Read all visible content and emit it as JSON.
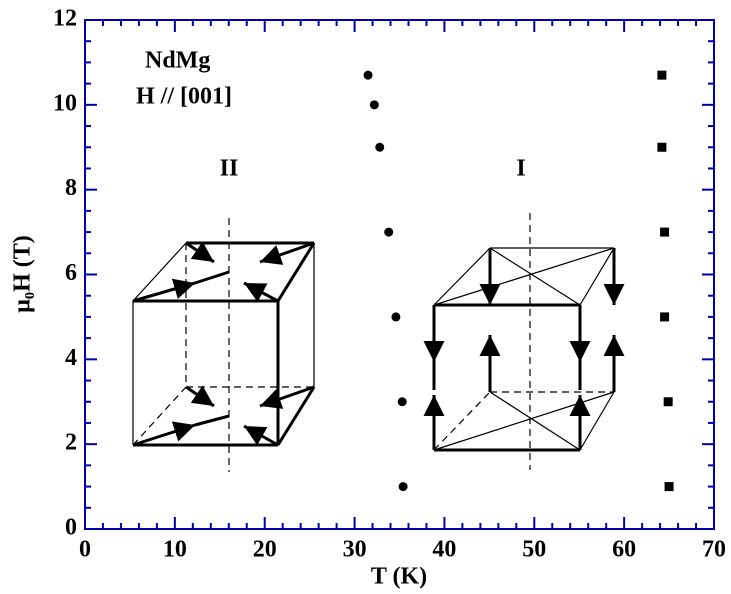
{
  "chart_data": {
    "type": "scatter",
    "x_label": "T (K)",
    "y_label": "μ₀H (T)",
    "annotations": [
      "NdMg",
      "H // [001]",
      "II",
      "I"
    ],
    "series": [
      {
        "marker": "circle",
        "color": "#000000",
        "x": [
          31.5,
          32.2,
          32.8,
          33.8,
          34.6,
          35.3,
          35.4
        ],
        "values": [
          10.7,
          10.0,
          9.0,
          7.0,
          5.0,
          3.0,
          1.0
        ]
      },
      {
        "marker": "square",
        "color": "#000000",
        "x": [
          64.2,
          64.2,
          64.5,
          64.5,
          64.9,
          65.0
        ],
        "values": [
          10.7,
          9.0,
          7.0,
          5.0,
          3.0,
          1.0
        ]
      }
    ],
    "xlim": [
      0,
      70
    ],
    "xticks": [
      0,
      10,
      20,
      30,
      40,
      50,
      60,
      70
    ],
    "ylim": [
      0,
      12
    ],
    "yticks": [
      0,
      2,
      4,
      6,
      8,
      10,
      12
    ],
    "axis_color": "#0000aa"
  }
}
